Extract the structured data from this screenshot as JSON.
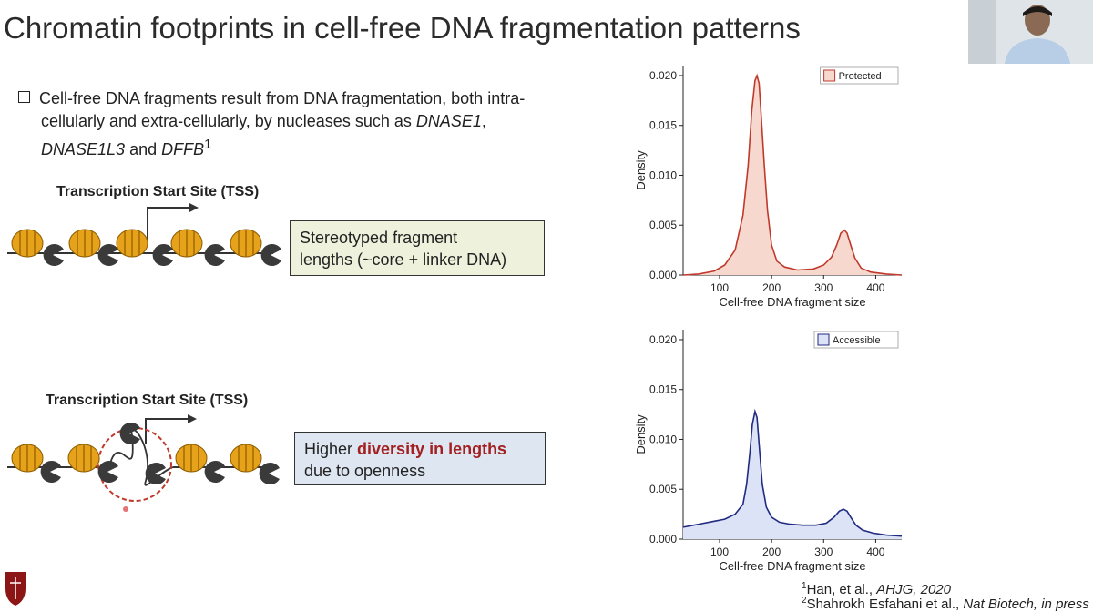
{
  "slide": {
    "title": "Chromatin footprints in cell-free DNA fragmentation patterns",
    "bullet": {
      "line1": "Cell-free DNA fragments result from DNA fragmentation, both intra-",
      "line2_pre": "cellularly and extra-cellularly, by nucleases such as ",
      "line2_italic": "DNASE1",
      "line2_post": ",",
      "line3_italic1": "DNASE1L3",
      "line3_mid": " and ",
      "line3_italic2": "DFFB",
      "line3_sup": "1"
    },
    "diagram_top": {
      "tss_label": "Transcription Start Site (TSS)",
      "callout_line1": "Stereotyped fragment",
      "callout_line2": "lengths (~core + linker DNA)"
    },
    "diagram_bottom": {
      "tss_label": "Transcription Start Site (TSS)",
      "callout_pre": "Higher ",
      "callout_highlight": "diversity in lengths",
      "callout_line2": "due to openness"
    },
    "references": {
      "ref1_sup": "1",
      "ref1_text": "Han, et al., ",
      "ref1_italic": "AHJG, 2020",
      "ref2_sup": "2",
      "ref2_text": "Shahrokh Esfahani et al., ",
      "ref2_italic": "Nat Biotech, in press"
    }
  },
  "colors": {
    "protected_line": "#c0392b",
    "protected_fill": "#f6d8cf",
    "accessible_line": "#1f2a80",
    "accessible_fill": "#dde3f7",
    "highlight": "#a32020",
    "nucleosome": "#e6a21a",
    "tf": "#3a3a3a",
    "open_circle": "#c0392b"
  },
  "chart_data": [
    {
      "type": "area",
      "title": "",
      "xlabel": "Cell-free DNA fragment size",
      "ylabel": "Density",
      "legend": "Protected",
      "legend_position": "top-right",
      "xlim": [
        30,
        450
      ],
      "ylim": [
        0,
        0.021
      ],
      "xticks": [
        100,
        200,
        300,
        400
      ],
      "yticks": [
        0.0,
        0.005,
        0.01,
        0.015,
        0.02
      ],
      "ytick_labels": [
        "0.000",
        "0.005",
        "0.010",
        "0.015",
        "0.020"
      ],
      "series": [
        {
          "name": "Protected",
          "x": [
            30,
            60,
            90,
            110,
            130,
            145,
            155,
            162,
            168,
            172,
            176,
            180,
            186,
            192,
            200,
            210,
            225,
            250,
            280,
            300,
            315,
            325,
            333,
            340,
            345,
            352,
            360,
            372,
            390,
            420,
            450
          ],
          "y": [
            0.0,
            0.0001,
            0.0004,
            0.001,
            0.0025,
            0.006,
            0.011,
            0.0165,
            0.0195,
            0.02,
            0.0192,
            0.016,
            0.011,
            0.0065,
            0.003,
            0.0014,
            0.0008,
            0.0005,
            0.0006,
            0.001,
            0.0018,
            0.003,
            0.0042,
            0.0045,
            0.0042,
            0.003,
            0.0017,
            0.0007,
            0.0003,
            0.0001,
            0.0
          ]
        }
      ]
    },
    {
      "type": "area",
      "title": "",
      "xlabel": "Cell-free DNA fragment size",
      "ylabel": "Density",
      "legend": "Accessible",
      "legend_position": "top-right",
      "xlim": [
        30,
        450
      ],
      "ylim": [
        0,
        0.021
      ],
      "xticks": [
        100,
        200,
        300,
        400
      ],
      "yticks": [
        0.0,
        0.005,
        0.01,
        0.015,
        0.02
      ],
      "ytick_labels": [
        "0.000",
        "0.005",
        "0.010",
        "0.015",
        "0.020"
      ],
      "series": [
        {
          "name": "Accessible",
          "x": [
            30,
            60,
            90,
            110,
            130,
            145,
            152,
            158,
            163,
            168,
            172,
            176,
            182,
            190,
            200,
            215,
            235,
            260,
            285,
            305,
            320,
            330,
            338,
            345,
            352,
            362,
            375,
            395,
            420,
            450
          ],
          "y": [
            0.0012,
            0.0015,
            0.0018,
            0.002,
            0.0025,
            0.0035,
            0.0055,
            0.0085,
            0.0115,
            0.0128,
            0.0122,
            0.0095,
            0.0055,
            0.0032,
            0.0022,
            0.0017,
            0.0015,
            0.0014,
            0.0014,
            0.0016,
            0.0022,
            0.0028,
            0.003,
            0.0028,
            0.0022,
            0.0014,
            0.0009,
            0.0006,
            0.0004,
            0.0003
          ]
        }
      ]
    }
  ]
}
